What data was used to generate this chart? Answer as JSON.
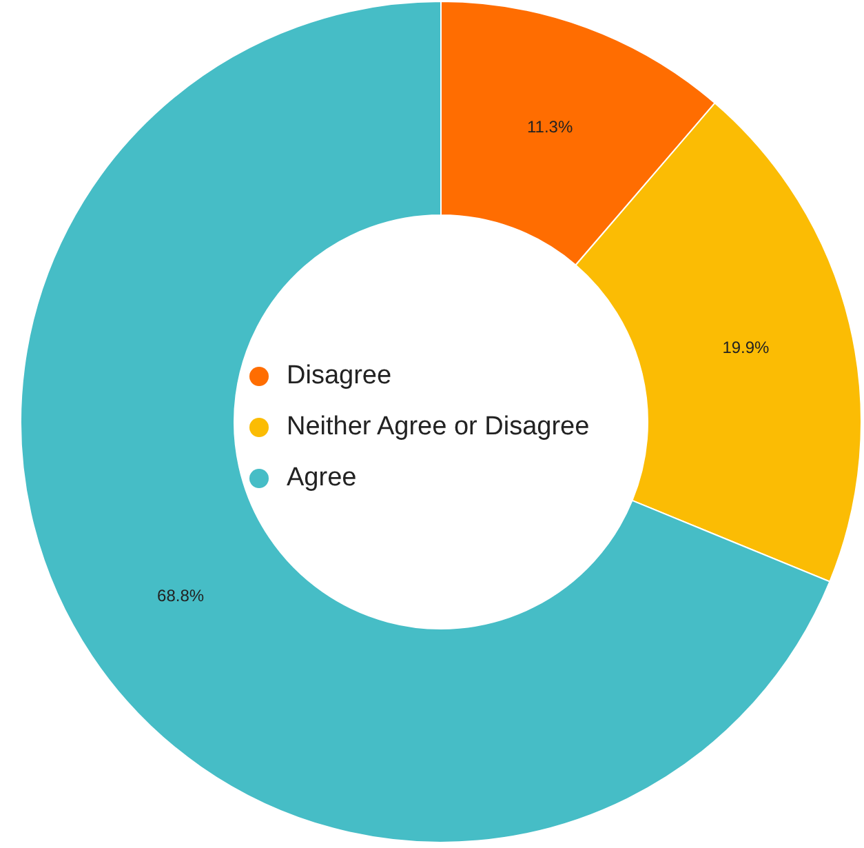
{
  "chart_data": {
    "type": "donut",
    "categories": [
      "Disagree",
      "Neither Agree or Disagree",
      "Agree"
    ],
    "values": [
      11.3,
      19.9,
      68.8
    ],
    "colors": [
      "#ff6d01",
      "#fbbc04",
      "#46bdc6"
    ],
    "value_labels": [
      "11.3%",
      "19.9%",
      "68.8%"
    ],
    "legend": "center"
  }
}
